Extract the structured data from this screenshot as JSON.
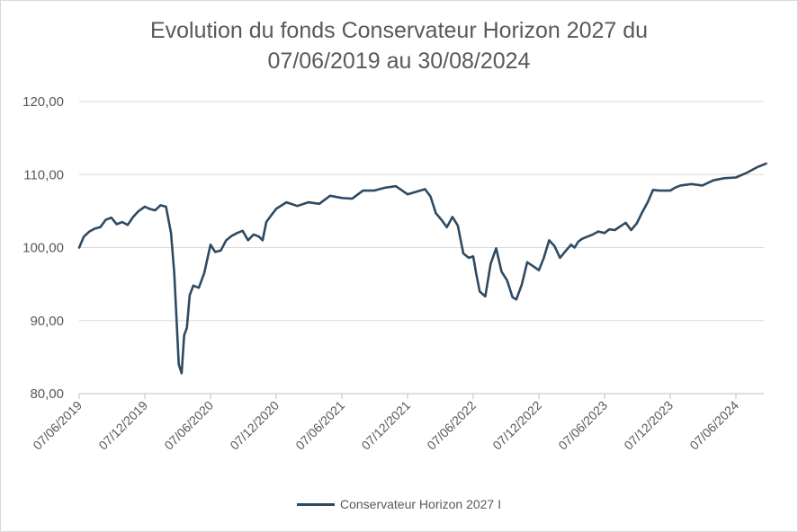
{
  "chart_data": {
    "type": "line",
    "title_line1": "Evolution du fonds Conservateur Horizon 2027 du",
    "title_line2": "07/06/2019 au 30/08/2024",
    "title": "Evolution du fonds Conservateur Horizon 2027 du 07/06/2019 au 30/08/2024",
    "xlabel": "",
    "ylabel": "",
    "ylim": [
      80,
      120
    ],
    "y_ticks": [
      "80,00",
      "90,00",
      "100,00",
      "110,00",
      "120,00"
    ],
    "x_ticks": [
      "07/06/2019",
      "07/12/2019",
      "07/06/2020",
      "07/12/2020",
      "07/06/2021",
      "07/12/2021",
      "07/06/2022",
      "07/12/2022",
      "07/06/2023",
      "07/12/2023",
      "07/06/2024"
    ],
    "grid": "horizontal",
    "legend_position": "bottom",
    "series": [
      {
        "name": "Conservateur Horizon 2027 I",
        "color": "#2e4a62",
        "x": [
          "2019-06-07",
          "2019-06-20",
          "2019-07-05",
          "2019-07-20",
          "2019-08-05",
          "2019-08-20",
          "2019-09-05",
          "2019-09-20",
          "2019-10-05",
          "2019-10-20",
          "2019-11-05",
          "2019-11-20",
          "2019-12-07",
          "2019-12-20",
          "2020-01-05",
          "2020-01-20",
          "2020-02-05",
          "2020-02-19",
          "2020-02-28",
          "2020-03-10",
          "2020-03-18",
          "2020-03-25",
          "2020-04-02",
          "2020-04-10",
          "2020-04-20",
          "2020-05-05",
          "2020-05-20",
          "2020-06-07",
          "2020-06-20",
          "2020-07-05",
          "2020-07-20",
          "2020-08-05",
          "2020-08-20",
          "2020-09-05",
          "2020-09-20",
          "2020-10-05",
          "2020-10-20",
          "2020-10-30",
          "2020-11-10",
          "2020-11-25",
          "2020-12-07",
          "2021-01-05",
          "2021-02-05",
          "2021-03-05",
          "2021-04-05",
          "2021-05-05",
          "2021-06-07",
          "2021-07-05",
          "2021-08-05",
          "2021-09-05",
          "2021-10-05",
          "2021-11-05",
          "2021-12-07",
          "2022-01-05",
          "2022-01-25",
          "2022-02-10",
          "2022-02-25",
          "2022-03-10",
          "2022-03-25",
          "2022-04-10",
          "2022-04-25",
          "2022-05-10",
          "2022-05-25",
          "2022-06-07",
          "2022-06-15",
          "2022-06-25",
          "2022-07-10",
          "2022-07-25",
          "2022-08-10",
          "2022-08-25",
          "2022-09-10",
          "2022-09-25",
          "2022-10-05",
          "2022-10-20",
          "2022-11-05",
          "2022-11-20",
          "2022-12-07",
          "2022-12-20",
          "2023-01-05",
          "2023-01-20",
          "2023-02-05",
          "2023-02-20",
          "2023-03-05",
          "2023-03-15",
          "2023-03-25",
          "2023-04-05",
          "2023-04-20",
          "2023-05-05",
          "2023-05-20",
          "2023-06-07",
          "2023-06-20",
          "2023-07-05",
          "2023-07-20",
          "2023-08-05",
          "2023-08-20",
          "2023-09-05",
          "2023-09-20",
          "2023-10-05",
          "2023-10-20",
          "2023-11-05",
          "2023-11-20",
          "2023-12-07",
          "2023-12-20",
          "2024-01-05",
          "2024-02-05",
          "2024-03-05",
          "2024-04-05",
          "2024-05-05",
          "2024-06-07",
          "2024-07-05",
          "2024-08-05",
          "2024-08-30"
        ],
        "values": [
          100.0,
          101.5,
          102.2,
          102.6,
          102.8,
          103.8,
          104.1,
          103.2,
          103.5,
          103.1,
          104.2,
          105.0,
          105.6,
          105.3,
          105.1,
          105.8,
          105.6,
          102.0,
          96.5,
          84.0,
          82.8,
          88.0,
          89.0,
          93.5,
          94.8,
          94.5,
          96.5,
          100.4,
          99.4,
          99.6,
          101.0,
          101.6,
          102.0,
          102.3,
          101.0,
          101.8,
          101.5,
          101.0,
          103.5,
          104.5,
          105.3,
          106.2,
          105.7,
          106.2,
          106.0,
          107.1,
          106.8,
          106.7,
          107.8,
          107.8,
          108.2,
          108.4,
          107.3,
          107.7,
          108.0,
          107.0,
          104.7,
          103.8,
          102.8,
          104.2,
          103.0,
          99.2,
          98.6,
          98.8,
          96.5,
          94.0,
          93.3,
          97.8,
          99.9,
          96.7,
          95.5,
          93.2,
          92.9,
          94.9,
          98.0,
          97.5,
          96.9,
          98.5,
          101.0,
          100.2,
          98.6,
          99.5,
          100.4,
          100.0,
          100.8,
          101.2,
          101.5,
          101.8,
          102.2,
          102.0,
          102.5,
          102.4,
          102.9,
          103.4,
          102.4,
          103.3,
          104.8,
          106.2,
          107.9,
          107.8,
          107.8,
          107.8,
          108.2,
          108.5,
          108.7,
          108.5,
          109.2,
          109.5,
          109.6,
          110.2,
          111.0,
          111.5
        ]
      }
    ]
  }
}
